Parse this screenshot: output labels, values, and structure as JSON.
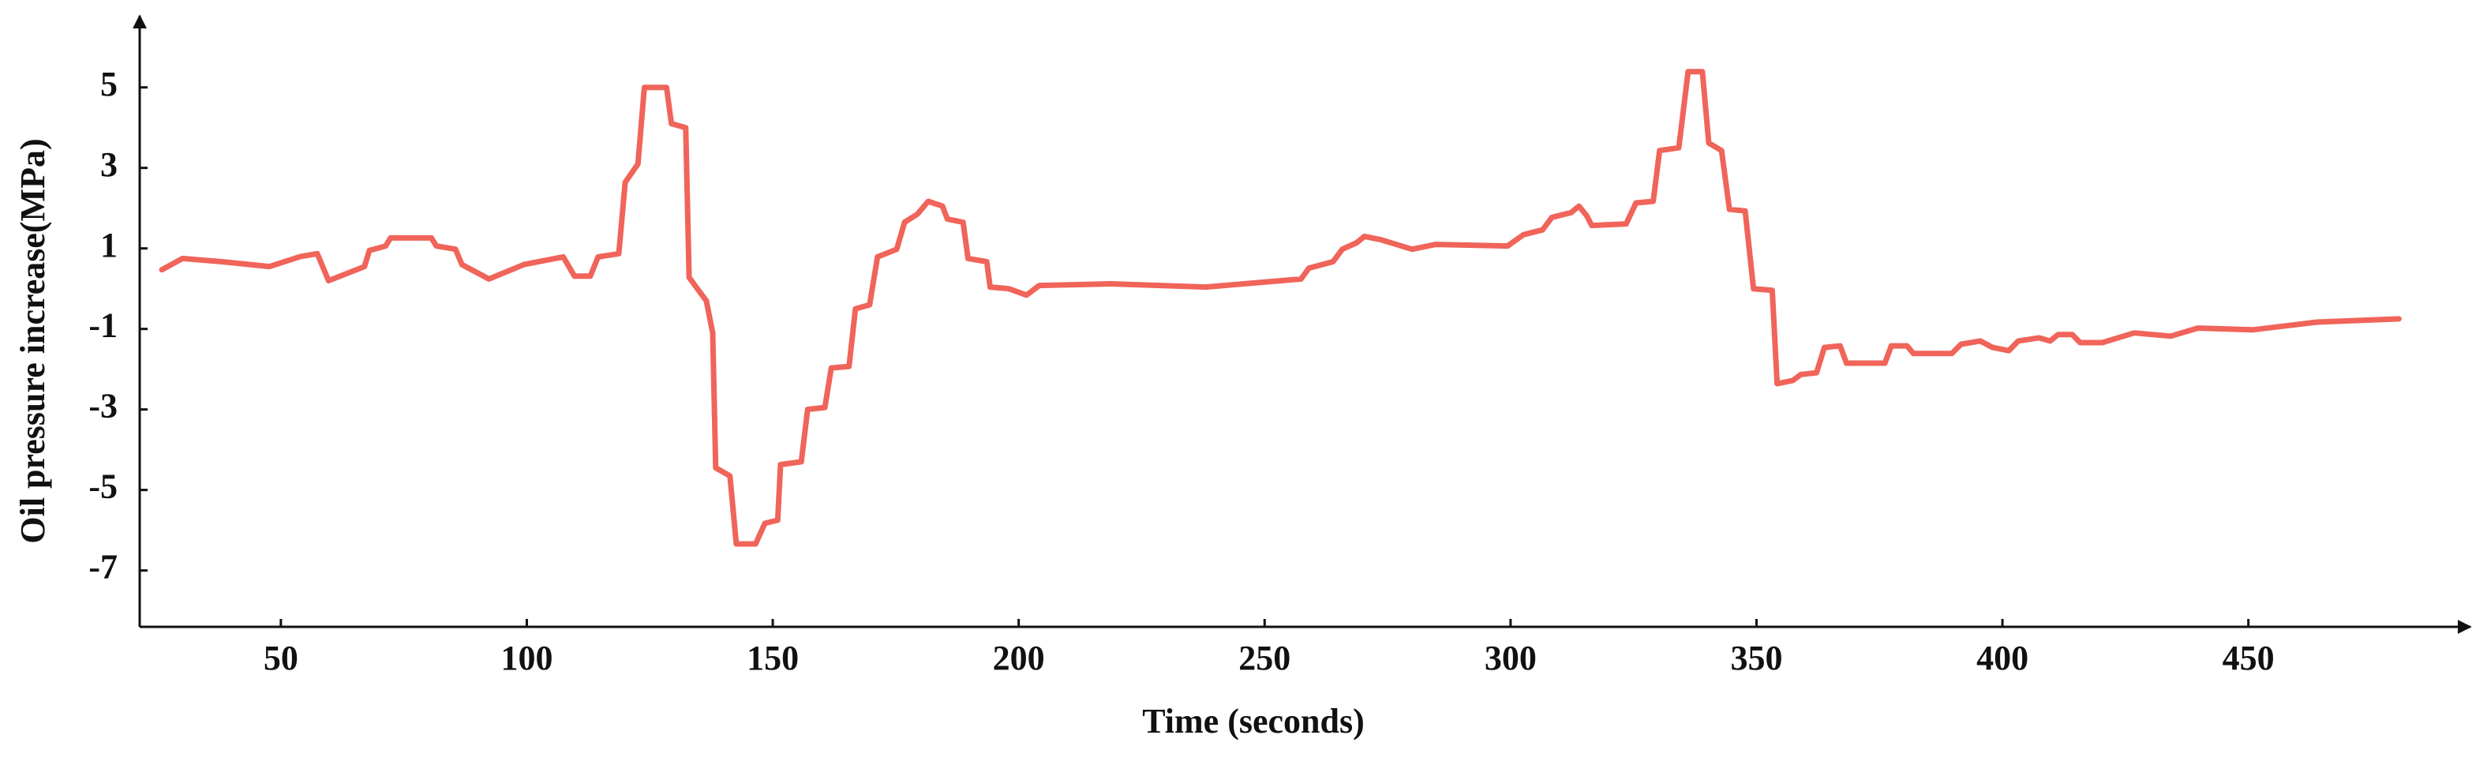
{
  "chart_data": {
    "type": "line",
    "xlabel": "Time (seconds)",
    "ylabel": "Oil pressure increase(MPa)",
    "color": "#f0645a",
    "xlim": [
      21.3,
      494.5
    ],
    "xticks": [
      50,
      100,
      150,
      200,
      250,
      300,
      350,
      400,
      450
    ],
    "ylim": [
      -8.4,
      6.7
    ],
    "yticks": [
      5,
      3,
      1,
      -1,
      -3,
      -5,
      -7
    ],
    "x": [
      25.8,
      30,
      38,
      47.7,
      54,
      57.4,
      59.7,
      63.9,
      67,
      68,
      71.3,
      72.3,
      80.6,
      81.6,
      85.5,
      86.8,
      92.3,
      99.4,
      107.4,
      109.7,
      112.9,
      114.5,
      118.7,
      120,
      122.6,
      123.9,
      128.4,
      129.4,
      132.3,
      133,
      136.5,
      137.8,
      138.4,
      141.3,
      142.6,
      146.5,
      148.4,
      151,
      151.6,
      155.8,
      157.1,
      160.6,
      161.9,
      165.5,
      166.8,
      169.7,
      171.3,
      175.2,
      176.8,
      179.4,
      181.6,
      184.5,
      185.5,
      188.7,
      189.7,
      193.5,
      194.2,
      198,
      201.6,
      204.2,
      218.7,
      238,
      257.4,
      259,
      263.9,
      265.8,
      268.7,
      270.3,
      273.5,
      280,
      284.8,
      299.4,
      302.6,
      306.5,
      308.4,
      312.3,
      313.9,
      315.5,
      316.5,
      323.5,
      325.5,
      329,
      330.3,
      334.2,
      336.1,
      339,
      340.3,
      342.9,
      344.5,
      347.7,
      349.4,
      353.2,
      354.2,
      357.4,
      359,
      362.2,
      363.8,
      367,
      368.3,
      376.1,
      377.4,
      380.6,
      381.9,
      389.7,
      391.6,
      395.5,
      398,
      401.3,
      403.2,
      407.4,
      409.7,
      411.3,
      414.2,
      415.8,
      420.3,
      426.8,
      434.2,
      439.7,
      451,
      463.9,
      480.6
    ],
    "values": [
      0.47,
      0.75,
      0.67,
      0.55,
      0.8,
      0.87,
      0.2,
      0.4,
      0.55,
      0.95,
      1.06,
      1.26,
      1.26,
      1.06,
      0.98,
      0.6,
      0.24,
      0.6,
      0.79,
      0.31,
      0.31,
      0.79,
      0.87,
      2.64,
      3.1,
      5,
      5,
      4.1,
      4.0,
      0.28,
      -0.3,
      -1.1,
      -4.45,
      -4.65,
      -6.34,
      -6.34,
      -5.83,
      -5.75,
      -4.37,
      -4.3,
      -3.0,
      -2.95,
      -1.97,
      -1.93,
      -0.5,
      -0.4,
      0.79,
      0.98,
      1.65,
      1.85,
      2.17,
      2.05,
      1.73,
      1.65,
      0.75,
      0.67,
      0.04,
      0,
      -0.16,
      0.08,
      0.12,
      0.04,
      0.24,
      0.51,
      0.67,
      0.98,
      1.14,
      1.3,
      1.22,
      0.98,
      1.1,
      1.06,
      1.34,
      1.46,
      1.77,
      1.89,
      2.05,
      1.81,
      1.57,
      1.61,
      2.13,
      2.17,
      3.43,
      3.5,
      5.39,
      5.39,
      3.62,
      3.43,
      1.97,
      1.93,
      0,
      -0.04,
      -2.36,
      -2.28,
      -2.13,
      -2.09,
      -1.46,
      -1.42,
      -1.85,
      -1.85,
      -1.42,
      -1.42,
      -1.61,
      -1.61,
      -1.38,
      -1.3,
      -1.46,
      -1.54,
      -1.3,
      -1.22,
      -1.3,
      -1.14,
      -1.14,
      -1.34,
      -1.34,
      -1.1,
      -1.18,
      -0.98,
      -1.02,
      -0.83,
      -0.75
    ]
  }
}
